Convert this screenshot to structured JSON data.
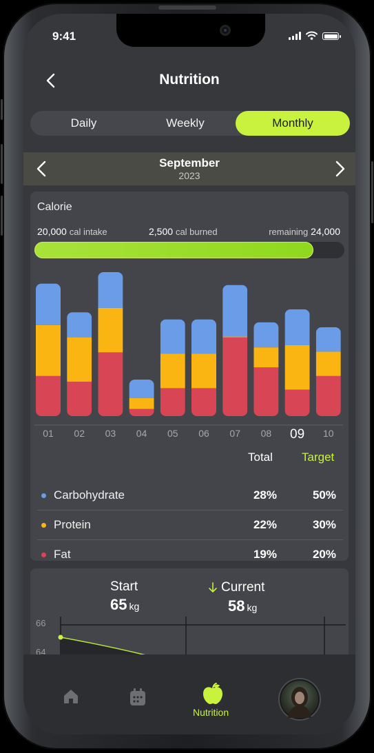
{
  "status_bar": {
    "time": "9:41"
  },
  "header": {
    "title": "Nutrition"
  },
  "segments": [
    {
      "label": "Daily",
      "active": false
    },
    {
      "label": "Weekly",
      "active": false
    },
    {
      "label": "Monthly",
      "active": true
    }
  ],
  "period": {
    "month": "September",
    "year": "2023"
  },
  "calorie": {
    "title": "Calorie",
    "intake_value": "20,000",
    "intake_label": "cal intake",
    "burned_value": "2,500",
    "burned_label": "cal burned",
    "remaining_label": "remaining",
    "remaining_value": "24,000",
    "progress_fraction": 0.9
  },
  "chart_data": {
    "type": "bar",
    "stacked": true,
    "categories": [
      "01",
      "02",
      "03",
      "04",
      "05",
      "06",
      "07",
      "08",
      "09",
      "10"
    ],
    "selected_category": "09",
    "series": [
      {
        "name": "Fat",
        "color": "#d84656",
        "values": [
          56,
          48,
          89,
          10,
          39,
          39,
          110,
          68,
          37,
          56
        ]
      },
      {
        "name": "Protein",
        "color": "#fbb513",
        "values": [
          71,
          62,
          62,
          15,
          48,
          48,
          1,
          28,
          62,
          34
        ]
      },
      {
        "name": "Carbohydrate",
        "color": "#6b9ce8",
        "values": [
          58,
          35,
          50,
          26,
          48,
          48,
          72,
          35,
          50,
          34
        ]
      }
    ],
    "ylim": [
      0,
      200
    ]
  },
  "macros": {
    "total_header": "Total",
    "target_header": "Target",
    "rows": [
      {
        "name": "Carbohydrate",
        "total": "28%",
        "target": "50%",
        "color": "#6b9ce8"
      },
      {
        "name": "Protein",
        "total": "22%",
        "target": "30%",
        "color": "#fbb513"
      },
      {
        "name": "Fat",
        "total": "19%",
        "target": "20%",
        "color": "#d84656"
      }
    ]
  },
  "weight": {
    "start_label": "Start",
    "start_value": "65",
    "current_label": "Current",
    "current_value": "58",
    "unit": "kg",
    "y_ticks": [
      "66",
      "64"
    ]
  },
  "tabbar": {
    "items": [
      {
        "icon": "home-icon"
      },
      {
        "icon": "calendar-icon"
      },
      {
        "icon": "apple-icon",
        "label": "Nutrition",
        "active": true
      },
      {
        "icon": "avatar"
      }
    ]
  },
  "colors": {
    "accent": "#c9f23e",
    "background": "#36383c",
    "card": "#43454a"
  }
}
